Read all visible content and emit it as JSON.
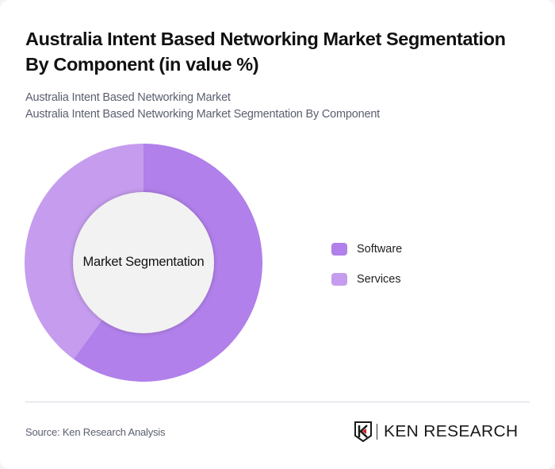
{
  "header": {
    "title": "Australia Intent Based Networking Market Segmentation By Component (in value %)",
    "subtitle_line1": "Australia Intent Based Networking Market",
    "subtitle_line2": "Australia Intent Based Networking Market Segmentation By Component"
  },
  "chart": {
    "center_label": "Market Segmentation"
  },
  "legend": {
    "items": [
      {
        "label": "Software",
        "color": "#b180ea"
      },
      {
        "label": "Services",
        "color": "#c59cee"
      }
    ]
  },
  "footer": {
    "source": "Source: Ken Research Analysis",
    "logo_text": "KEN RESEARCH",
    "logo_accent": "#d0202a"
  },
  "colors": {
    "software": "#b180ea",
    "services": "#c59cee",
    "center_fill": "#f2f2f2"
  },
  "chart_data": {
    "type": "pie",
    "subtype": "donut",
    "title": "Australia Intent Based Networking Market Segmentation By Component (in value %)",
    "subtitle": "Australia Intent Based Networking Market / Australia Intent Based Networking Market Segmentation By Component",
    "center_label": "Market Segmentation",
    "categories": [
      "Software",
      "Services"
    ],
    "values": [
      60,
      40
    ],
    "colors": [
      "#b180ea",
      "#c59cee"
    ],
    "legend_position": "right",
    "start_angle": "12 o'clock, clockwise",
    "source": "Source: Ken Research Analysis"
  }
}
